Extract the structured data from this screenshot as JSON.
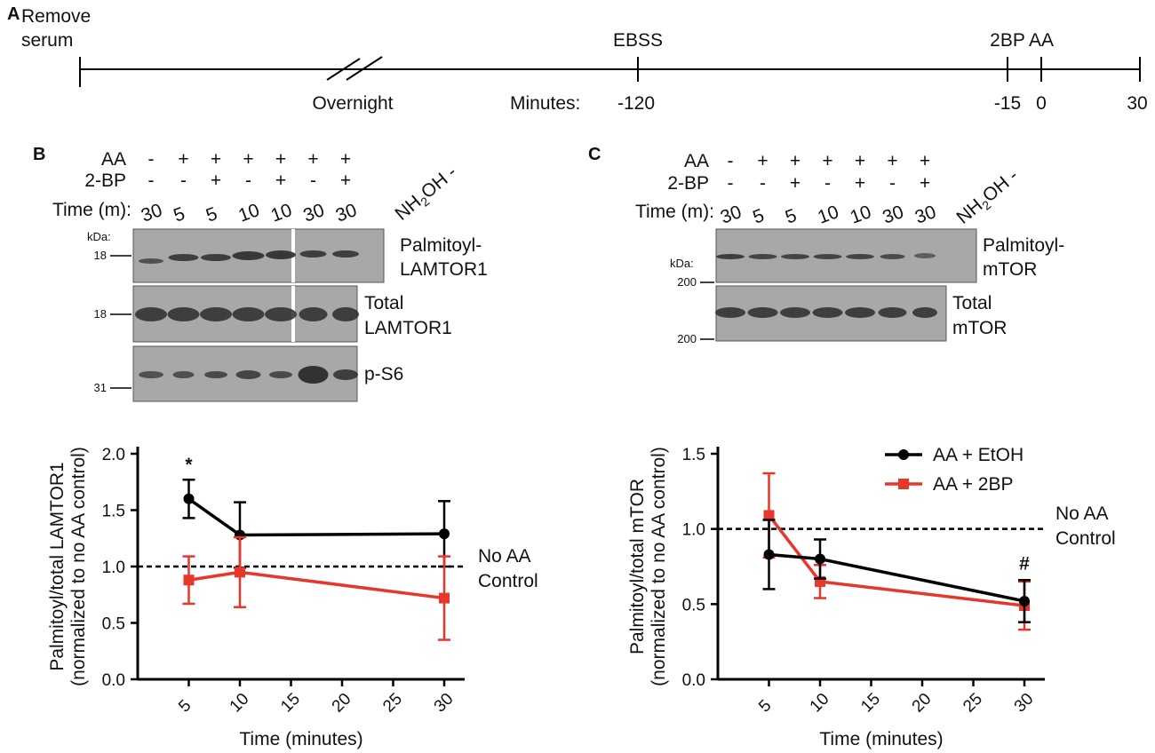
{
  "panel_a": {
    "label": "A",
    "events": {
      "remove_serum_line1": "Remove",
      "remove_serum_line2": "serum",
      "ebss": "EBSS",
      "bp": "2BP",
      "aa": "AA"
    },
    "overnight": "Overnight",
    "minutes_label": "Minutes:",
    "ticks": [
      "-120",
      "-15",
      "0",
      "30"
    ]
  },
  "panel_b": {
    "label": "B",
    "header": {
      "aa_label": "AA",
      "bp_label": "2-BP",
      "time_label": "Time (m):",
      "aa_signs": [
        "-",
        "+",
        "+",
        "+",
        "+",
        "+",
        "+"
      ],
      "bp_signs": [
        "-",
        "-",
        "+",
        "-",
        "+",
        "-",
        "+"
      ],
      "times": [
        "30",
        "5",
        "5",
        "10",
        "10",
        "30",
        "30"
      ],
      "nh2oh": "NH2OH -"
    },
    "kda": "kDa:",
    "markers": [
      "18",
      "18",
      "31"
    ],
    "blots": [
      {
        "line1": "Palmitoyl-",
        "line2": "LAMTOR1"
      },
      {
        "line1": "Total",
        "line2": "LAMTOR1"
      },
      {
        "line1": "p-S6",
        "line2": ""
      }
    ],
    "no_aa_line1": "No AA",
    "no_aa_line2": "Control"
  },
  "panel_c": {
    "label": "C",
    "header": {
      "aa_label": "AA",
      "bp_label": "2-BP",
      "time_label": "Time (m):",
      "aa_signs": [
        "-",
        "+",
        "+",
        "+",
        "+",
        "+",
        "+"
      ],
      "bp_signs": [
        "-",
        "-",
        "+",
        "-",
        "+",
        "-",
        "+"
      ],
      "times": [
        "30",
        "5",
        "5",
        "10",
        "10",
        "30",
        "30"
      ],
      "nh2oh": "NH2OH -"
    },
    "kda": "kDa:",
    "markers": [
      "200",
      "200"
    ],
    "blots": [
      {
        "line1": "Palmitoyl-",
        "line2": "mTOR"
      },
      {
        "line1": "Total",
        "line2": "mTOR"
      }
    ],
    "no_aa_line1": "No AA",
    "no_aa_line2": "Control"
  },
  "colors": {
    "black_series": "#000000",
    "red_series": "#e8372a"
  },
  "chart_data": [
    {
      "type": "line",
      "title": "",
      "xlabel": "Time (minutes)",
      "ylabel": "Palmitoyl/total LAMTOR1",
      "ylabel2": "(normalized to no AA control)",
      "xlim": [
        0,
        32
      ],
      "ylim": [
        0,
        2.0
      ],
      "xticks": [
        "5",
        "10",
        "15",
        "20",
        "25",
        "30"
      ],
      "yticks": [
        "0.0",
        "0.5",
        "1.0",
        "1.5",
        "2.0"
      ],
      "reference_line": 1.0,
      "series": [
        {
          "name": "AA + EtOH",
          "marker": "circle",
          "x": [
            5,
            10,
            30
          ],
          "y": [
            1.6,
            1.28,
            1.29
          ],
          "err": [
            0.17,
            0.29,
            0.29
          ]
        },
        {
          "name": "AA + 2BP",
          "marker": "square",
          "x": [
            5,
            10,
            30
          ],
          "y": [
            0.88,
            0.95,
            0.72
          ],
          "err": [
            0.21,
            0.31,
            0.37
          ]
        }
      ],
      "annotations": [
        {
          "x": 5,
          "y": 1.85,
          "text": "*"
        }
      ]
    },
    {
      "type": "line",
      "title": "",
      "xlabel": "Time (minutes)",
      "ylabel": "Palmitoyl/total mTOR",
      "ylabel2": "(normalized to no AA control)",
      "xlim": [
        0,
        32
      ],
      "ylim": [
        0,
        1.5
      ],
      "xticks": [
        "5",
        "10",
        "15",
        "20",
        "25",
        "30"
      ],
      "yticks": [
        "0.0",
        "0.5",
        "1.0",
        "1.5"
      ],
      "reference_line": 1.0,
      "legend_position": "top-right",
      "series": [
        {
          "name": "AA + EtOH",
          "marker": "circle",
          "x": [
            5,
            10,
            30
          ],
          "y": [
            0.83,
            0.8,
            0.52
          ],
          "err": [
            0.23,
            0.13,
            0.14
          ]
        },
        {
          "name": "AA + 2BP",
          "marker": "square",
          "x": [
            5,
            10,
            30
          ],
          "y": [
            1.09,
            0.65,
            0.49
          ],
          "err": [
            0.28,
            0.11,
            0.16
          ]
        }
      ],
      "annotations": [
        {
          "x": 30,
          "y": 0.73,
          "text": "#"
        }
      ]
    }
  ]
}
